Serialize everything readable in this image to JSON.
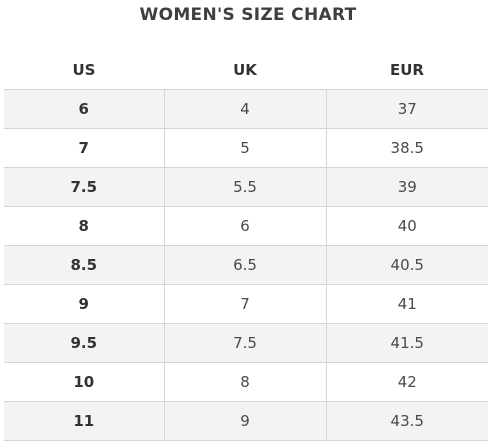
{
  "title": "WOMEN'S SIZE CHART",
  "table": {
    "headers": [
      "US",
      "UK",
      "EUR"
    ],
    "rows": [
      [
        "6",
        "4",
        "37"
      ],
      [
        "7",
        "5",
        "38.5"
      ],
      [
        "7.5",
        "5.5",
        "39"
      ],
      [
        "8",
        "6",
        "40"
      ],
      [
        "8.5",
        "6.5",
        "40.5"
      ],
      [
        "9",
        "7",
        "41"
      ],
      [
        "9.5",
        "7.5",
        "41.5"
      ],
      [
        "10",
        "8",
        "42"
      ],
      [
        "11",
        "9",
        "43.5"
      ]
    ]
  }
}
